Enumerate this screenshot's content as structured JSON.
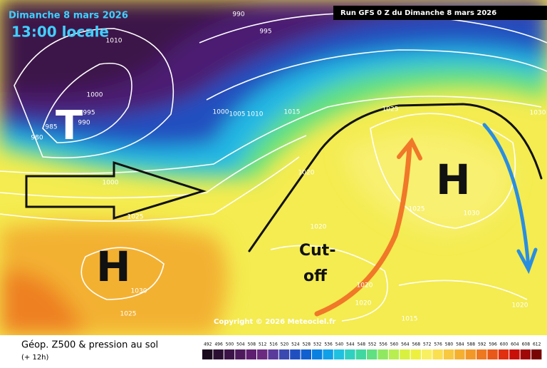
{
  "header": {
    "date": "Dimanche 8 mars 2026",
    "time": "13:00 locale",
    "run": "Run GFS 0 Z du Dimanche 8 mars 2026"
  },
  "annotations": {
    "low": "T",
    "highs": [
      "H",
      "H"
    ],
    "cutoff": [
      "Cut-",
      "off"
    ]
  },
  "isobar_labels": [
    "990",
    "995",
    "1010",
    "1000",
    "995",
    "990",
    "985",
    "980",
    "1000",
    "1005",
    "1010",
    "1015",
    "1025",
    "1020",
    "1000",
    "1025",
    "1020",
    "1025",
    "1030",
    "1020",
    "1030",
    "1025",
    "1020",
    "1015",
    "1020",
    "1030"
  ],
  "footer": {
    "title": "Géop. Z500 & pression au sol",
    "step": "(+ 12h)",
    "copyright": "Copyright © 2026 Meteociel.fr"
  },
  "legend": {
    "labels": [
      492,
      496,
      500,
      504,
      508,
      512,
      516,
      520,
      524,
      528,
      532,
      536,
      540,
      544,
      548,
      552,
      556,
      560,
      564,
      568,
      572,
      576,
      580,
      584,
      588,
      592,
      596,
      600,
      604,
      608,
      612
    ],
    "colors": [
      "#1a0a1e",
      "#2b0f33",
      "#3c1448",
      "#4d1a5c",
      "#5e1f70",
      "#6a2a80",
      "#5a3a9a",
      "#3a4ab0",
      "#2050c0",
      "#1060d0",
      "#0a80e0",
      "#10a0e8",
      "#20c0e0",
      "#30d0c0",
      "#40d8a0",
      "#60e080",
      "#90e860",
      "#b8ee50",
      "#d8f040",
      "#eef040",
      "#f8f060",
      "#fae050",
      "#f8c840",
      "#f5b030",
      "#f29828",
      "#ee7820",
      "#e85818",
      "#e03010",
      "#c81008",
      "#a00808",
      "#780404"
    ]
  }
}
